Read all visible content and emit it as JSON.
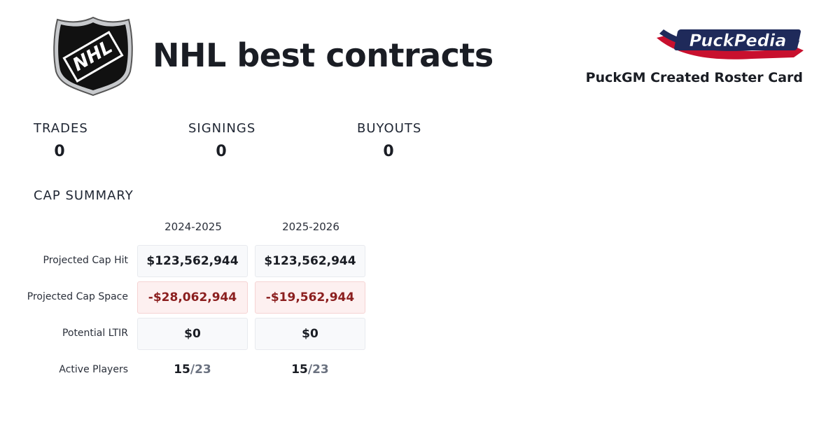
{
  "header": {
    "title": "NHL best contracts",
    "subtitle": "PuckGM Created Roster Card",
    "league_logo_text": "NHL",
    "brand_logo_text": "PuckPedia"
  },
  "stats": [
    {
      "label": "TRADES",
      "value": 0
    },
    {
      "label": "SIGNINGS",
      "value": 0
    },
    {
      "label": "BUYOUTS",
      "value": 0
    }
  ],
  "cap_summary": {
    "title": "CAP SUMMARY",
    "columns": [
      "2024-2025",
      "2025-2026"
    ],
    "rows": [
      {
        "label": "Projected Cap Hit",
        "values": [
          "$123,562,944",
          "$123,562,944"
        ]
      },
      {
        "label": "Projected Cap Space",
        "values": [
          "-$28,062,944",
          "-$19,562,944"
        ]
      },
      {
        "label": "Potential LTIR",
        "values": [
          "$0",
          "$0"
        ]
      }
    ],
    "active_players": {
      "label": "Active Players",
      "values": [
        {
          "count": "15",
          "limit": "/23"
        },
        {
          "count": "15",
          "limit": "/23"
        }
      ]
    }
  }
}
